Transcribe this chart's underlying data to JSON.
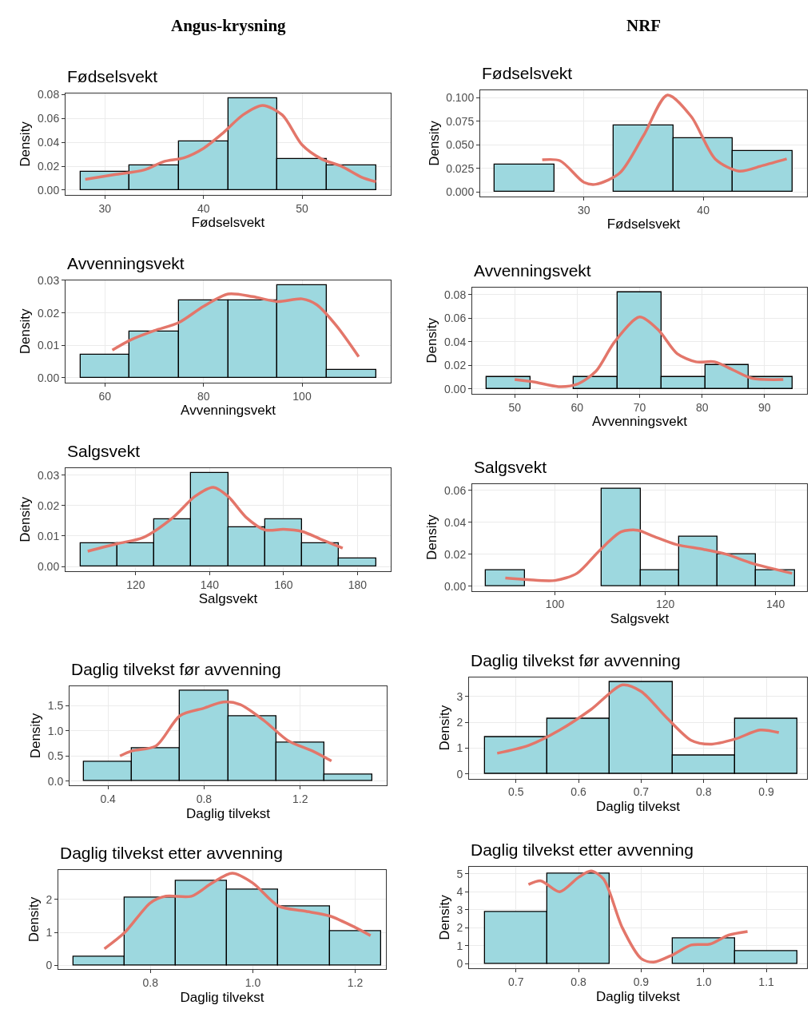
{
  "chart_data": [
    {
      "type": "histogram",
      "title": "Fødselsvekt",
      "xlabel": "Fødselsvekt",
      "ylabel": "Density",
      "annotations": [
        "Angus-krysning"
      ],
      "bins": [
        27.5,
        32.5,
        37.5,
        42.5,
        47.5,
        52.5,
        57.5
      ],
      "values": [
        0.0155,
        0.0205,
        0.041,
        0.077,
        0.026,
        0.0205
      ],
      "color": "#9dd8df",
      "xlim": [
        26,
        59
      ],
      "ylim": [
        -0.004,
        0.081
      ],
      "xticks": [
        30,
        40,
        50
      ],
      "yticks": [
        {
          "value": 0,
          "label": "0.00"
        },
        {
          "value": 0.02,
          "label": "0.02"
        },
        {
          "value": 0.04,
          "label": "0.04"
        },
        {
          "value": 0.06,
          "label": "0.06"
        },
        {
          "value": 0.08,
          "label": "0.08"
        }
      ],
      "grid": true,
      "series": [
        {
          "type": "line",
          "color": "#e3766a",
          "x": [
            28,
            31,
            34,
            36,
            38,
            40,
            42,
            44,
            46,
            48,
            50,
            52,
            54,
            56,
            57.5
          ],
          "values": [
            0.009,
            0.013,
            0.017,
            0.024,
            0.027,
            0.035,
            0.048,
            0.063,
            0.071,
            0.063,
            0.038,
            0.026,
            0.02,
            0.011,
            0.007
          ]
        }
      ]
    },
    {
      "type": "histogram",
      "title": "Fødselsvekt",
      "xlabel": "Fødselsvekt",
      "ylabel": "Density",
      "annotations": [
        "NRF"
      ],
      "bins": [
        22.5,
        27.5,
        32.5,
        37.5,
        42.5,
        47.5
      ],
      "values": [
        0.029,
        0,
        0.071,
        0.057,
        0.043
      ],
      "color": "#9dd8df",
      "xlim": [
        21.3,
        48.7
      ],
      "ylim": [
        -0.005,
        0.108
      ],
      "xticks": [
        30,
        40
      ],
      "yticks": [
        {
          "value": 0,
          "label": "0.000"
        },
        {
          "value": 0.025,
          "label": "0.025"
        },
        {
          "value": 0.05,
          "label": "0.050"
        },
        {
          "value": 0.075,
          "label": "0.075"
        },
        {
          "value": 0.1,
          "label": "0.100"
        }
      ],
      "grid": true,
      "series": [
        {
          "type": "line",
          "color": "#e3766a",
          "x": [
            26.5,
            28,
            30,
            31,
            33,
            35,
            37,
            39,
            41,
            43,
            45,
            47
          ],
          "values": [
            0.034,
            0.033,
            0.01,
            0.008,
            0.02,
            0.06,
            0.103,
            0.08,
            0.035,
            0.022,
            0.028,
            0.035
          ]
        }
      ]
    },
    {
      "type": "histogram",
      "title": "Avvenningsvekt",
      "xlabel": "Avvenningsvekt",
      "ylabel": "Density",
      "bins": [
        55,
        65,
        75,
        85,
        95,
        105,
        115
      ],
      "values": [
        0.007,
        0.0143,
        0.0238,
        0.0238,
        0.0286,
        0.0024
      ],
      "color": "#9dd8df",
      "xlim": [
        52,
        118
      ],
      "ylim": [
        -0.0015,
        0.03
      ],
      "xticks": [
        60,
        80,
        100
      ],
      "yticks": [
        {
          "value": 0,
          "label": "0.00"
        },
        {
          "value": 0.01,
          "label": "0.01"
        },
        {
          "value": 0.02,
          "label": "0.02"
        },
        {
          "value": 0.03,
          "label": "0.03"
        }
      ],
      "grid": true,
      "series": [
        {
          "type": "line",
          "color": "#e3766a",
          "x": [
            61.5,
            65,
            70,
            75,
            80,
            85,
            90,
            95,
            100,
            103,
            107,
            111.5
          ],
          "values": [
            0.0085,
            0.0115,
            0.0145,
            0.017,
            0.022,
            0.0258,
            0.025,
            0.0235,
            0.0243,
            0.0225,
            0.016,
            0.0065
          ]
        }
      ]
    },
    {
      "type": "histogram",
      "title": "Avvenningsvekt",
      "xlabel": "Avvenningsvekt",
      "ylabel": "Density",
      "bins": [
        45.5,
        52.5,
        59.5,
        66.5,
        73.5,
        80.5,
        87.5,
        94.5
      ],
      "values": [
        0.01,
        0,
        0.01,
        0.082,
        0.01,
        0.02,
        0.01
      ],
      "color": "#9dd8df",
      "xlim": [
        43.2,
        96.8
      ],
      "ylim": [
        -0.004,
        0.086
      ],
      "xticks": [
        50,
        60,
        70,
        80,
        90
      ],
      "yticks": [
        {
          "value": 0,
          "label": "0.00"
        },
        {
          "value": 0.02,
          "label": "0.02"
        },
        {
          "value": 0.04,
          "label": "0.04"
        },
        {
          "value": 0.06,
          "label": "0.06"
        },
        {
          "value": 0.08,
          "label": "0.08"
        }
      ],
      "grid": true,
      "series": [
        {
          "type": "line",
          "color": "#e3766a",
          "x": [
            50,
            53,
            57,
            60,
            63,
            66,
            70,
            73,
            76,
            79,
            82,
            85,
            88,
            93
          ],
          "values": [
            0.008,
            0.006,
            0.002,
            0.004,
            0.015,
            0.04,
            0.061,
            0.05,
            0.03,
            0.023,
            0.023,
            0.016,
            0.009,
            0.008
          ]
        }
      ]
    },
    {
      "type": "histogram",
      "title": "Salgsvekt",
      "xlabel": "Salgsvekt",
      "ylabel": "Density",
      "bins": [
        105,
        115,
        125,
        135,
        145,
        155,
        165,
        175,
        185
      ],
      "values": [
        0.0077,
        0.0077,
        0.0154,
        0.0308,
        0.0128,
        0.0154,
        0.0077,
        0.0026
      ],
      "color": "#9dd8df",
      "xlim": [
        101,
        189
      ],
      "ylim": [
        -0.0015,
        0.0323
      ],
      "xticks": [
        120,
        140,
        160,
        180
      ],
      "yticks": [
        {
          "value": 0,
          "label": "0.00"
        },
        {
          "value": 0.01,
          "label": "0.01"
        },
        {
          "value": 0.02,
          "label": "0.02"
        },
        {
          "value": 0.03,
          "label": "0.03"
        }
      ],
      "grid": true,
      "series": [
        {
          "type": "line",
          "color": "#e3766a",
          "x": [
            107,
            115,
            122,
            130,
            136,
            141,
            145,
            150,
            155,
            160,
            165,
            170,
            176
          ],
          "values": [
            0.005,
            0.0075,
            0.0095,
            0.016,
            0.023,
            0.026,
            0.023,
            0.016,
            0.012,
            0.0122,
            0.0115,
            0.009,
            0.006
          ]
        }
      ]
    },
    {
      "type": "histogram",
      "title": "Salgsvekt",
      "xlabel": "Salgsvekt",
      "ylabel": "Density",
      "bins": [
        87.5,
        94.5,
        101.5,
        108.5,
        115.5,
        122.5,
        129.5,
        136.5,
        143.5
      ],
      "values": [
        0.01,
        0,
        0,
        0.061,
        0.01,
        0.031,
        0.02,
        0.01
      ],
      "color": "#9dd8df",
      "xlim": [
        85,
        145.7
      ],
      "ylim": [
        -0.003,
        0.064
      ],
      "xticks": [
        100,
        120,
        140
      ],
      "yticks": [
        {
          "value": 0,
          "label": "0.00"
        },
        {
          "value": 0.02,
          "label": "0.02"
        },
        {
          "value": 0.04,
          "label": "0.04"
        },
        {
          "value": 0.06,
          "label": "0.06"
        }
      ],
      "grid": true,
      "series": [
        {
          "type": "line",
          "color": "#e3766a",
          "x": [
            91,
            95,
            100,
            104,
            108,
            112,
            115,
            118,
            122,
            127,
            131,
            136,
            143
          ],
          "values": [
            0.005,
            0.004,
            0.0035,
            0.008,
            0.022,
            0.034,
            0.035,
            0.031,
            0.026,
            0.023,
            0.02,
            0.014,
            0.008
          ]
        }
      ]
    },
    {
      "type": "histogram",
      "title": "Daglig tilvekst før avvenning",
      "xlabel": "Daglig tilvekst",
      "ylabel": "Density",
      "bins": [
        0.3,
        0.5,
        0.7,
        0.9,
        1.1,
        1.3,
        1.5
      ],
      "values": [
        0.39,
        0.65,
        1.8,
        1.29,
        0.77,
        0.13
      ],
      "color": "#9dd8df",
      "xlim": [
        0.24,
        1.56
      ],
      "ylim": [
        -0.09,
        1.89
      ],
      "xticks": [
        0.4,
        0.8,
        1.2
      ],
      "yticks": [
        {
          "value": 0,
          "label": "0.0"
        },
        {
          "value": 0.5,
          "label": "0.5"
        },
        {
          "value": 1,
          "label": "1.0"
        },
        {
          "value": 1.5,
          "label": "1.5"
        }
      ],
      "grid": true,
      "series": [
        {
          "type": "line",
          "color": "#e3766a",
          "x": [
            0.45,
            0.5,
            0.6,
            0.7,
            0.8,
            0.88,
            0.95,
            1.05,
            1.15,
            1.25,
            1.33
          ],
          "values": [
            0.5,
            0.6,
            0.7,
            1.3,
            1.45,
            1.57,
            1.52,
            1.2,
            0.8,
            0.6,
            0.4
          ]
        }
      ]
    },
    {
      "type": "histogram",
      "title": "Daglig tilvekst før avvenning",
      "xlabel": "Daglig tilvekst",
      "ylabel": "Density",
      "bins": [
        0.45,
        0.55,
        0.65,
        0.75,
        0.85,
        0.95
      ],
      "values": [
        1.43,
        2.14,
        3.57,
        0.71,
        2.14
      ],
      "color": "#9dd8df",
      "xlim": [
        0.425,
        0.965
      ],
      "ylim": [
        -0.18,
        3.75
      ],
      "xticks": [
        0.5,
        0.6,
        0.7,
        0.8,
        0.9
      ],
      "yticks": [
        0,
        1,
        2,
        3
      ],
      "grid": true,
      "series": [
        {
          "type": "line",
          "color": "#e3766a",
          "x": [
            0.47,
            0.52,
            0.57,
            0.62,
            0.67,
            0.7,
            0.74,
            0.78,
            0.81,
            0.85,
            0.89,
            0.92
          ],
          "values": [
            0.8,
            1.1,
            1.7,
            2.5,
            3.45,
            3.2,
            2.2,
            1.3,
            1.15,
            1.35,
            1.7,
            1.6
          ]
        }
      ]
    },
    {
      "type": "histogram",
      "title": "Daglig tilvekst etter avvenning",
      "xlabel": "Daglig tilvekst",
      "ylabel": "Density",
      "bins": [
        0.65,
        0.75,
        0.85,
        0.95,
        1.05,
        1.15,
        1.25
      ],
      "values": [
        0.26,
        2.05,
        2.56,
        2.31,
        1.8,
        1.03
      ],
      "color": "#9dd8df",
      "xlim": [
        0.62,
        1.26
      ],
      "ylim": [
        -0.13,
        2.91
      ],
      "xticks": [
        0.8,
        {
          "value": 1,
          "label": "1.0"
        },
        1.2
      ],
      "yticks": [
        0,
        1,
        2
      ],
      "grid": true,
      "series": [
        {
          "type": "line",
          "color": "#e3766a",
          "x": [
            0.71,
            0.75,
            0.8,
            0.83,
            0.88,
            0.92,
            0.96,
            1.0,
            1.05,
            1.1,
            1.15,
            1.2,
            1.23
          ],
          "values": [
            0.5,
            1.0,
            1.9,
            2.1,
            2.1,
            2.5,
            2.8,
            2.5,
            1.8,
            1.65,
            1.5,
            1.15,
            0.9
          ]
        }
      ]
    },
    {
      "type": "histogram",
      "title": "Daglig tilvekst etter avvenning",
      "xlabel": "Daglig tilvekst",
      "ylabel": "Density",
      "bins": [
        0.65,
        0.75,
        0.85,
        0.95,
        1.05,
        1.15
      ],
      "values": [
        2.86,
        5.0,
        0,
        1.43,
        0.71
      ],
      "color": "#9dd8df",
      "xlim": [
        0.625,
        1.165
      ],
      "ylim": [
        -0.26,
        5.4
      ],
      "xticks": [
        0.7,
        0.8,
        0.9,
        {
          "value": 1,
          "label": "1.0"
        },
        1.1
      ],
      "yticks": [
        0,
        1,
        2,
        3,
        4,
        5
      ],
      "grid": true,
      "series": [
        {
          "type": "line",
          "color": "#e3766a",
          "x": [
            0.72,
            0.74,
            0.77,
            0.8,
            0.82,
            0.84,
            0.87,
            0.9,
            0.92,
            0.95,
            0.98,
            1.01,
            1.04,
            1.07
          ],
          "values": [
            4.4,
            4.6,
            4.0,
            4.8,
            5.15,
            4.7,
            2.0,
            0.3,
            0.1,
            0.5,
            1.05,
            1.1,
            1.6,
            1.8
          ]
        }
      ]
    }
  ]
}
